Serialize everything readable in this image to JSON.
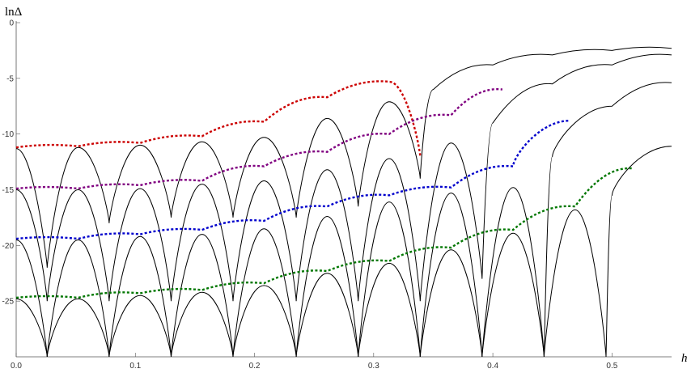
{
  "chart_data": {
    "type": "line",
    "title": "",
    "xlabel": "h",
    "ylabel": "lnΔ",
    "xlim": [
      0,
      0.55
    ],
    "ylim": [
      -30,
      0
    ],
    "x_ticks": [
      0.0,
      0.1,
      0.2,
      0.3,
      0.4,
      0.5
    ],
    "x_tick_labels": [
      "0.0",
      "0.1",
      "0.2",
      "0.3",
      "0.4",
      "0.5"
    ],
    "y_ticks": [
      0,
      -5,
      -10,
      -15,
      -20,
      -25
    ],
    "y_tick_labels": [
      "0",
      "-5",
      "-10",
      "-15",
      "-20",
      "-25"
    ],
    "grid": false,
    "legend": "none",
    "dip_positions": [
      0.026,
      0.078,
      0.13,
      0.182,
      0.235,
      0.287,
      0.339,
      0.391,
      0.443,
      0.495
    ],
    "series": [
      {
        "style": "solid",
        "color": "#000000",
        "x": [
          0.0,
          0.026,
          0.052,
          0.078,
          0.104,
          0.13,
          0.156,
          0.182,
          0.208,
          0.235,
          0.261,
          0.287,
          0.313,
          0.339,
          0.35,
          0.4,
          0.45,
          0.5,
          0.55
        ],
        "y": [
          -11.3,
          -22,
          -11.2,
          -18,
          -11.0,
          -17.5,
          -10.7,
          -17.5,
          -10.3,
          -17.5,
          -8.6,
          -16.5,
          -7.1,
          -14,
          -6.0,
          -3.8,
          -2.9,
          -2.5,
          -2.3
        ]
      },
      {
        "style": "solid",
        "color": "#000000",
        "x": [
          0.0,
          0.026,
          0.052,
          0.078,
          0.104,
          0.13,
          0.156,
          0.182,
          0.208,
          0.235,
          0.261,
          0.287,
          0.313,
          0.339,
          0.365,
          0.391,
          0.4,
          0.45,
          0.5,
          0.55
        ],
        "y": [
          -15.0,
          -25,
          -15.0,
          -25,
          -14.9,
          -25,
          -14.5,
          -25,
          -14.2,
          -25,
          -13.2,
          -25,
          -12.2,
          -25,
          -10.8,
          -23,
          -9.0,
          -5.5,
          -3.8,
          -2.9
        ]
      },
      {
        "style": "solid",
        "color": "#000000",
        "x": [
          0.0,
          0.026,
          0.052,
          0.078,
          0.104,
          0.13,
          0.156,
          0.182,
          0.208,
          0.235,
          0.261,
          0.287,
          0.313,
          0.339,
          0.365,
          0.391,
          0.417,
          0.443,
          0.45,
          0.5,
          0.55
        ],
        "y": [
          -19.5,
          -30,
          -19.5,
          -30,
          -19.2,
          -30,
          -19.0,
          -30,
          -18.5,
          -30,
          -17.4,
          -30,
          -16.1,
          -30,
          -15.3,
          -30,
          -14.8,
          -30,
          -12.0,
          -7.5,
          -5.4
        ]
      },
      {
        "style": "solid",
        "color": "#000000",
        "x": [
          0.0,
          0.026,
          0.052,
          0.078,
          0.104,
          0.13,
          0.156,
          0.182,
          0.208,
          0.235,
          0.261,
          0.287,
          0.313,
          0.339,
          0.365,
          0.391,
          0.417,
          0.443,
          0.469,
          0.495,
          0.5,
          0.55
        ],
        "y": [
          -24.8,
          -30,
          -24.8,
          -30,
          -24.5,
          -30,
          -24.2,
          -30,
          -23.6,
          -30,
          -22.5,
          -30,
          -21.6,
          -30,
          -20.4,
          -30,
          -18.9,
          -30,
          -16.8,
          -30,
          -15.5,
          -11.1
        ]
      },
      {
        "style": "dashed",
        "color": "#cc0000",
        "x": [
          0.0,
          0.052,
          0.104,
          0.156,
          0.208,
          0.261,
          0.313,
          0.339
        ],
        "y": [
          -11.2,
          -11.1,
          -10.8,
          -10.2,
          -8.9,
          -6.7,
          -5.3,
          -12.0
        ]
      },
      {
        "style": "dashed",
        "color": "#800080",
        "x": [
          0.0,
          0.052,
          0.104,
          0.156,
          0.208,
          0.261,
          0.313,
          0.365,
          0.408
        ],
        "y": [
          -14.9,
          -14.9,
          -14.6,
          -14.2,
          -12.9,
          -11.6,
          -10.0,
          -8.3,
          -6.0
        ]
      },
      {
        "style": "dashed",
        "color": "#0000cc",
        "x": [
          0.0,
          0.052,
          0.104,
          0.156,
          0.208,
          0.261,
          0.313,
          0.365,
          0.417,
          0.465
        ],
        "y": [
          -19.4,
          -19.4,
          -19.0,
          -18.6,
          -17.8,
          -16.5,
          -15.5,
          -14.8,
          -12.9,
          -8.8
        ]
      },
      {
        "style": "dashed",
        "color": "#007700",
        "x": [
          0.0,
          0.052,
          0.104,
          0.156,
          0.208,
          0.261,
          0.313,
          0.365,
          0.417,
          0.469,
          0.518
        ],
        "y": [
          -24.7,
          -24.7,
          -24.3,
          -24.0,
          -23.4,
          -22.3,
          -21.4,
          -20.2,
          -18.6,
          -16.5,
          -13.1
        ]
      }
    ]
  }
}
